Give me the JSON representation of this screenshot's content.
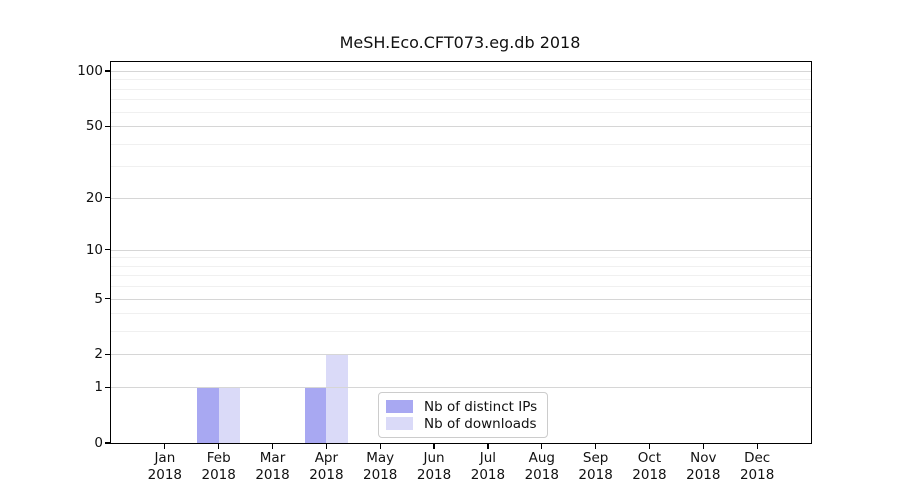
{
  "chart_data": {
    "type": "bar",
    "title": "MeSH.Eco.CFT073.eg.db 2018",
    "categories": [
      "Jan",
      "Feb",
      "Mar",
      "Apr",
      "May",
      "Jun",
      "Jul",
      "Aug",
      "Sep",
      "Oct",
      "Nov",
      "Dec"
    ],
    "category_year": "2018",
    "series": [
      {
        "name": "Nb of distinct IPs",
        "color": "#a8a8f2",
        "values": [
          0,
          1,
          0,
          1,
          0,
          0,
          0,
          0,
          0,
          0,
          0,
          0
        ]
      },
      {
        "name": "Nb of downloads",
        "color": "#dadaf8",
        "values": [
          0,
          1,
          0,
          2,
          0,
          0,
          0,
          0,
          0,
          0,
          0,
          0
        ]
      }
    ],
    "xlabel": "",
    "ylabel": "",
    "y_scale": "log1p",
    "ylim": [
      0,
      112
    ],
    "yticks": [
      0,
      1,
      2,
      5,
      10,
      20,
      50,
      100
    ],
    "y_minor_gridlines": [
      3,
      4,
      6,
      7,
      8,
      9,
      30,
      40,
      60,
      70,
      80,
      90
    ],
    "grid": "horizontal",
    "legend_position": "lower center"
  },
  "colors": {
    "axis": "#000000",
    "grid_major": "#d6d6d6",
    "grid_minor": "#f0f0f0",
    "legend_border": "#cccccc",
    "background": "#ffffff"
  }
}
